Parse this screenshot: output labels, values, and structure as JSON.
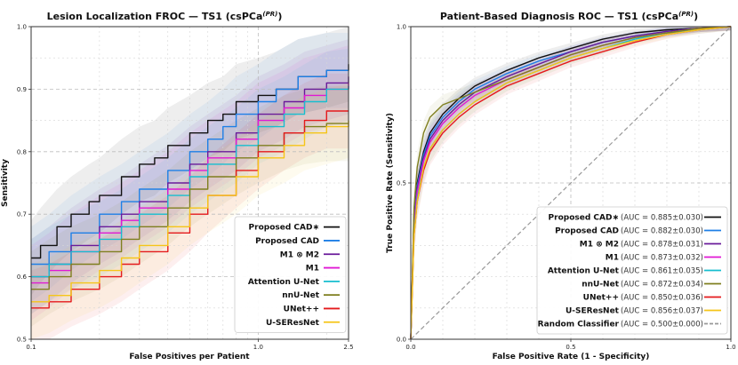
{
  "chart_data": [
    {
      "type": "line",
      "title": "Lesion Localization FROC — TS1 (csPCa",
      "title_sup": "(PR)",
      "title_close": ")",
      "xlabel": "False Positives per Patient",
      "ylabel": "Sensitivity",
      "xscale": "log",
      "xlim": [
        0.1,
        2.5
      ],
      "ylim": [
        0.5,
        1.0
      ],
      "xticks": [
        {
          "v": 0.1,
          "label": "0.1"
        },
        {
          "v": 1.0,
          "label": "1.0"
        },
        {
          "v": 2.5,
          "label": "2.5"
        }
      ],
      "yticks": [
        {
          "v": 0.5,
          "label": "0.5"
        },
        {
          "v": 0.6,
          "label": "0.6"
        },
        {
          "v": 0.7,
          "label": "0.7"
        },
        {
          "v": 0.8,
          "label": "0.8"
        },
        {
          "v": 0.9,
          "label": "0.9"
        },
        {
          "v": 1.0,
          "label": "1.0"
        }
      ],
      "grid": true,
      "legend_position": "bottom-right",
      "series": [
        {
          "name": "Proposed CAD∗",
          "color": "#111111",
          "x": [
            0.1,
            0.11,
            0.13,
            0.15,
            0.18,
            0.2,
            0.25,
            0.3,
            0.35,
            0.4,
            0.5,
            0.6,
            0.7,
            0.8,
            1.0,
            1.2,
            1.5,
            2.0,
            2.5
          ],
          "y": [
            0.63,
            0.65,
            0.68,
            0.7,
            0.72,
            0.73,
            0.76,
            0.78,
            0.79,
            0.81,
            0.83,
            0.85,
            0.86,
            0.88,
            0.89,
            0.9,
            0.92,
            0.93,
            0.94
          ]
        },
        {
          "name": "Proposed CAD",
          "color": "#1e7fe6",
          "x": [
            0.1,
            0.12,
            0.15,
            0.2,
            0.25,
            0.3,
            0.4,
            0.5,
            0.6,
            0.7,
            0.8,
            1.0,
            1.2,
            1.5,
            2.0,
            2.5
          ],
          "y": [
            0.62,
            0.64,
            0.67,
            0.7,
            0.72,
            0.74,
            0.77,
            0.8,
            0.82,
            0.84,
            0.86,
            0.88,
            0.9,
            0.92,
            0.93,
            0.93
          ]
        },
        {
          "name": "M1 ⊗ M2",
          "color": "#6a1b9a",
          "x": [
            0.1,
            0.12,
            0.15,
            0.2,
            0.25,
            0.3,
            0.4,
            0.5,
            0.6,
            0.8,
            1.0,
            1.3,
            1.6,
            2.0,
            2.5
          ],
          "y": [
            0.6,
            0.62,
            0.65,
            0.68,
            0.7,
            0.72,
            0.75,
            0.78,
            0.8,
            0.83,
            0.86,
            0.88,
            0.9,
            0.91,
            0.92
          ]
        },
        {
          "name": "M1",
          "color": "#e019d4",
          "x": [
            0.1,
            0.12,
            0.15,
            0.2,
            0.25,
            0.3,
            0.4,
            0.5,
            0.6,
            0.8,
            1.0,
            1.3,
            1.6,
            2.0,
            2.5
          ],
          "y": [
            0.59,
            0.61,
            0.64,
            0.67,
            0.69,
            0.71,
            0.74,
            0.77,
            0.79,
            0.82,
            0.85,
            0.87,
            0.89,
            0.9,
            0.91
          ]
        },
        {
          "name": "Attention U-Net",
          "color": "#17becf",
          "x": [
            0.1,
            0.12,
            0.15,
            0.2,
            0.25,
            0.3,
            0.4,
            0.5,
            0.6,
            0.8,
            1.0,
            1.3,
            1.6,
            2.0,
            2.5
          ],
          "y": [
            0.6,
            0.62,
            0.64,
            0.66,
            0.68,
            0.7,
            0.73,
            0.76,
            0.78,
            0.81,
            0.84,
            0.86,
            0.88,
            0.9,
            0.905
          ]
        },
        {
          "name": "nnU-Net",
          "color": "#7f7f1f",
          "x": [
            0.1,
            0.12,
            0.15,
            0.2,
            0.25,
            0.3,
            0.4,
            0.5,
            0.6,
            0.8,
            1.0,
            1.3,
            1.6,
            2.0,
            2.5
          ],
          "y": [
            0.58,
            0.6,
            0.62,
            0.64,
            0.66,
            0.68,
            0.71,
            0.74,
            0.76,
            0.79,
            0.81,
            0.83,
            0.84,
            0.845,
            0.845
          ]
        },
        {
          "name": "UNet++",
          "color": "#e41a1c",
          "x": [
            0.1,
            0.12,
            0.15,
            0.2,
            0.25,
            0.3,
            0.4,
            0.5,
            0.6,
            0.8,
            1.0,
            1.3,
            1.6,
            2.0,
            2.5
          ],
          "y": [
            0.55,
            0.56,
            0.58,
            0.6,
            0.62,
            0.64,
            0.67,
            0.7,
            0.73,
            0.77,
            0.8,
            0.83,
            0.85,
            0.865,
            0.865
          ]
        },
        {
          "name": "U-SEResNet",
          "color": "#f5c518",
          "x": [
            0.1,
            0.12,
            0.15,
            0.2,
            0.25,
            0.3,
            0.4,
            0.5,
            0.6,
            0.8,
            1.0,
            1.3,
            1.6,
            2.0,
            2.5
          ],
          "y": [
            0.56,
            0.57,
            0.59,
            0.61,
            0.63,
            0.65,
            0.68,
            0.71,
            0.73,
            0.76,
            0.79,
            0.81,
            0.83,
            0.84,
            0.85
          ]
        }
      ]
    },
    {
      "type": "line",
      "title": "Patient-Based Diagnosis ROC — TS1 (csPCa",
      "title_sup": "(PR)",
      "title_close": ")",
      "xlabel": "False Positive Rate (1 - Specificity)",
      "ylabel": "True Positive Rate (Sensitivity)",
      "xlim": [
        0.0,
        1.0
      ],
      "ylim": [
        0.0,
        1.0
      ],
      "xticks": [
        {
          "v": 0.0,
          "label": "0.0"
        },
        {
          "v": 0.5,
          "label": "0.5"
        },
        {
          "v": 1.0,
          "label": "1.0"
        }
      ],
      "yticks": [
        {
          "v": 0.0,
          "label": "0.0"
        },
        {
          "v": 0.5,
          "label": "0.5"
        },
        {
          "v": 1.0,
          "label": "1.0"
        }
      ],
      "grid": true,
      "legend_position": "bottom-right",
      "series": [
        {
          "name": "Proposed CAD∗",
          "auc": "(AUC = 0.885±0.030)",
          "color": "#111111",
          "x": [
            0,
            0.01,
            0.02,
            0.04,
            0.06,
            0.1,
            0.15,
            0.2,
            0.3,
            0.4,
            0.5,
            0.6,
            0.7,
            0.8,
            0.9,
            1.0
          ],
          "y": [
            0,
            0.4,
            0.5,
            0.6,
            0.66,
            0.72,
            0.77,
            0.81,
            0.86,
            0.9,
            0.93,
            0.96,
            0.98,
            0.99,
            0.995,
            1.0
          ]
        },
        {
          "name": "Proposed CAD",
          "auc": "(AUC = 0.882±0.030)",
          "color": "#1e7fe6",
          "x": [
            0,
            0.01,
            0.02,
            0.04,
            0.06,
            0.1,
            0.15,
            0.2,
            0.3,
            0.4,
            0.5,
            0.6,
            0.7,
            0.8,
            0.9,
            1.0
          ],
          "y": [
            0,
            0.38,
            0.49,
            0.59,
            0.65,
            0.71,
            0.76,
            0.8,
            0.85,
            0.89,
            0.92,
            0.95,
            0.97,
            0.985,
            0.995,
            1.0
          ]
        },
        {
          "name": "M1 ⊗ M2",
          "auc": "(AUC = 0.878±0.031)",
          "color": "#6a1b9a",
          "x": [
            0,
            0.01,
            0.02,
            0.04,
            0.06,
            0.1,
            0.15,
            0.2,
            0.3,
            0.4,
            0.5,
            0.6,
            0.7,
            0.8,
            0.9,
            1.0
          ],
          "y": [
            0,
            0.37,
            0.48,
            0.58,
            0.64,
            0.7,
            0.75,
            0.79,
            0.84,
            0.88,
            0.92,
            0.95,
            0.97,
            0.985,
            0.995,
            1.0
          ]
        },
        {
          "name": "M1",
          "auc": "(AUC = 0.873±0.032)",
          "color": "#e019d4",
          "x": [
            0,
            0.01,
            0.02,
            0.04,
            0.06,
            0.1,
            0.15,
            0.2,
            0.3,
            0.4,
            0.5,
            0.6,
            0.7,
            0.8,
            0.9,
            1.0
          ],
          "y": [
            0,
            0.36,
            0.47,
            0.57,
            0.63,
            0.69,
            0.74,
            0.78,
            0.83,
            0.87,
            0.91,
            0.94,
            0.965,
            0.98,
            0.995,
            1.0
          ]
        },
        {
          "name": "Attention U-Net",
          "auc": "(AUC = 0.861±0.035)",
          "color": "#17becf",
          "x": [
            0,
            0.01,
            0.02,
            0.04,
            0.06,
            0.1,
            0.15,
            0.2,
            0.3,
            0.4,
            0.5,
            0.6,
            0.7,
            0.8,
            0.9,
            1.0
          ],
          "y": [
            0,
            0.34,
            0.45,
            0.55,
            0.61,
            0.67,
            0.72,
            0.76,
            0.82,
            0.86,
            0.9,
            0.93,
            0.96,
            0.98,
            0.99,
            1.0
          ]
        },
        {
          "name": "nnU-Net",
          "auc": "(AUC = 0.872±0.034)",
          "color": "#7f7f1f",
          "x": [
            0,
            0.01,
            0.02,
            0.04,
            0.06,
            0.1,
            0.15,
            0.2,
            0.3,
            0.4,
            0.5,
            0.6,
            0.7,
            0.8,
            0.9,
            1.0
          ],
          "y": [
            0,
            0.42,
            0.55,
            0.66,
            0.71,
            0.75,
            0.77,
            0.79,
            0.83,
            0.87,
            0.91,
            0.94,
            0.965,
            0.98,
            0.995,
            1.0
          ]
        },
        {
          "name": "UNet++",
          "auc": "(AUC = 0.850±0.036)",
          "color": "#e41a1c",
          "x": [
            0,
            0.01,
            0.02,
            0.04,
            0.06,
            0.1,
            0.15,
            0.2,
            0.3,
            0.4,
            0.5,
            0.6,
            0.7,
            0.8,
            0.9,
            1.0
          ],
          "y": [
            0,
            0.33,
            0.44,
            0.54,
            0.6,
            0.66,
            0.71,
            0.75,
            0.81,
            0.85,
            0.89,
            0.92,
            0.95,
            0.975,
            0.99,
            1.0
          ]
        },
        {
          "name": "U-SEResNet",
          "auc": "(AUC = 0.856±0.037)",
          "color": "#f5c518",
          "x": [
            0,
            0.01,
            0.02,
            0.04,
            0.06,
            0.1,
            0.15,
            0.2,
            0.3,
            0.4,
            0.5,
            0.6,
            0.7,
            0.8,
            0.9,
            1.0
          ],
          "y": [
            0,
            0.33,
            0.44,
            0.55,
            0.61,
            0.67,
            0.72,
            0.76,
            0.82,
            0.86,
            0.9,
            0.93,
            0.955,
            0.975,
            0.99,
            1.0
          ]
        },
        {
          "name": "Random Classifier",
          "auc": "(AUC = 0.500±0.000)",
          "color": "#999999",
          "dashed": true,
          "x": [
            0,
            1
          ],
          "y": [
            0,
            1
          ]
        }
      ]
    }
  ]
}
